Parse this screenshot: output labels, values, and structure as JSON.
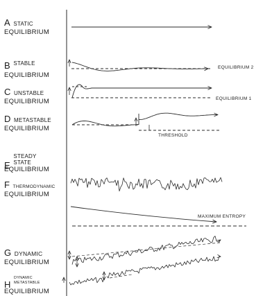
{
  "panels": [
    {
      "letter": "A",
      "term": "STATIC",
      "second": "EQUILIBRIUM"
    },
    {
      "letter": "B",
      "term": "STABLE",
      "second": "EQUILIBRIUM"
    },
    {
      "letter": "C",
      "term": "UNSTABLE",
      "second": "EQUILIBRIUM"
    },
    {
      "letter": "D",
      "term": "METASTABLE",
      "second": "EQUILIBRIUM"
    },
    {
      "letter": "E",
      "term": "STEADY STATE",
      "second": "EQUILIBRIUM"
    },
    {
      "letter": "F",
      "term": "THERMODYNAMIC",
      "second": "EQUILIBRIUM"
    },
    {
      "letter": "G",
      "term": "DYNAMIC",
      "second": "EQUILIBRIUM"
    },
    {
      "letter": "H",
      "term": "DYNAMIC METASTABLE",
      "second": "EQUILIBRIUM"
    }
  ],
  "annotations": {
    "equilibrium_2": "EQUILIBRIUM 2",
    "equilibrium_1": "EQUILIBRIUM 1",
    "threshold": "THRESHOLD",
    "maximum_entropy": "MAXIMUM ENTROPY"
  },
  "colors": {
    "ink": "#1a1a1a",
    "line": "#2a2a2a",
    "background": "#ffffff"
  }
}
